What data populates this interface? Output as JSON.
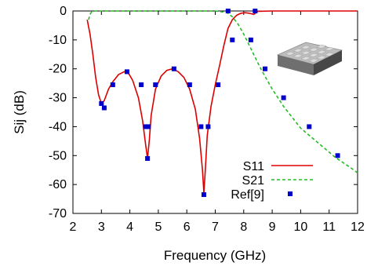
{
  "chart_data": {
    "type": "line",
    "xlabel": "Frequency (GHz)",
    "ylabel": "Sij (dB)",
    "xlim": [
      2,
      12
    ],
    "ylim": [
      -70,
      0
    ],
    "xticks": [
      2,
      3,
      4,
      5,
      6,
      7,
      8,
      9,
      10,
      11,
      12
    ],
    "yticks": [
      0,
      -10,
      -20,
      -30,
      -40,
      -50,
      -60,
      -70
    ],
    "grid": false,
    "legend_position": "bottom-right",
    "series": [
      {
        "name": "S11",
        "style": "line",
        "color": "#dd0000",
        "x": [
          2.5,
          2.6,
          2.7,
          2.8,
          2.9,
          3.0,
          3.1,
          3.25,
          3.4,
          3.6,
          3.8,
          3.95,
          4.1,
          4.3,
          4.45,
          4.55,
          4.62,
          4.68,
          4.75,
          4.9,
          5.1,
          5.3,
          5.5,
          5.7,
          5.9,
          6.1,
          6.3,
          6.45,
          6.55,
          6.6,
          6.65,
          6.72,
          6.85,
          7.0,
          7.15,
          7.3,
          7.45,
          7.6,
          7.75,
          7.9,
          8.05,
          8.2,
          8.35,
          8.5,
          9.0,
          10.0,
          11.0,
          12.0
        ],
        "y": [
          -3,
          -8,
          -15,
          -23,
          -29,
          -32,
          -31,
          -27,
          -24.5,
          -22,
          -21,
          -21.5,
          -24,
          -30,
          -38,
          -46,
          -51,
          -45,
          -36,
          -27,
          -22.5,
          -20.5,
          -20,
          -21,
          -23,
          -27,
          -34,
          -44,
          -55,
          -63,
          -55,
          -43,
          -33,
          -25.5,
          -19,
          -12,
          -6,
          -3,
          -1.5,
          -0.8,
          -0.6,
          -0.8,
          -1.2,
          -0.1,
          0,
          0,
          0,
          0
        ]
      },
      {
        "name": "S21",
        "style": "dashed",
        "color": "#22bb22",
        "x": [
          2.55,
          2.6,
          2.65,
          2.7,
          2.8,
          3.0,
          4.0,
          5.0,
          6.0,
          7.0,
          7.4,
          7.6,
          7.8,
          8.0,
          8.2,
          8.4,
          8.6,
          8.8,
          9.0,
          9.2,
          9.4,
          9.6,
          9.8,
          10.0,
          10.3,
          10.6,
          10.9,
          11.2,
          11.5,
          11.8,
          12.0
        ],
        "y": [
          -3,
          -1.2,
          -0.4,
          -0.1,
          0,
          0,
          0,
          0,
          0,
          0,
          -0.5,
          -2,
          -4.5,
          -8,
          -12,
          -16,
          -20,
          -23.5,
          -27,
          -30,
          -33,
          -35.5,
          -38,
          -40.5,
          -43,
          -45.5,
          -48,
          -50.5,
          -52.5,
          -54.5,
          -56
        ]
      },
      {
        "name": "Ref[9]",
        "style": "markers",
        "color": "#0000cc",
        "x": [
          3.0,
          3.1,
          3.4,
          3.9,
          4.4,
          4.55,
          4.62,
          4.65,
          4.9,
          5.55,
          6.1,
          6.5,
          6.6,
          6.75,
          7.1,
          7.45,
          7.6,
          8.25,
          8.4,
          8.75,
          9.4,
          10.3,
          11.3
        ],
        "y": [
          -32,
          -33.5,
          -25.5,
          -21,
          -25.5,
          -40,
          -51,
          -40,
          -25.5,
          -20,
          -25.5,
          -40,
          -63.5,
          -40,
          -25.5,
          0,
          -10,
          -10,
          0,
          -20,
          -30,
          -40,
          -50
        ]
      }
    ]
  },
  "inset": {
    "description_icon": "circuit-board-icon"
  }
}
